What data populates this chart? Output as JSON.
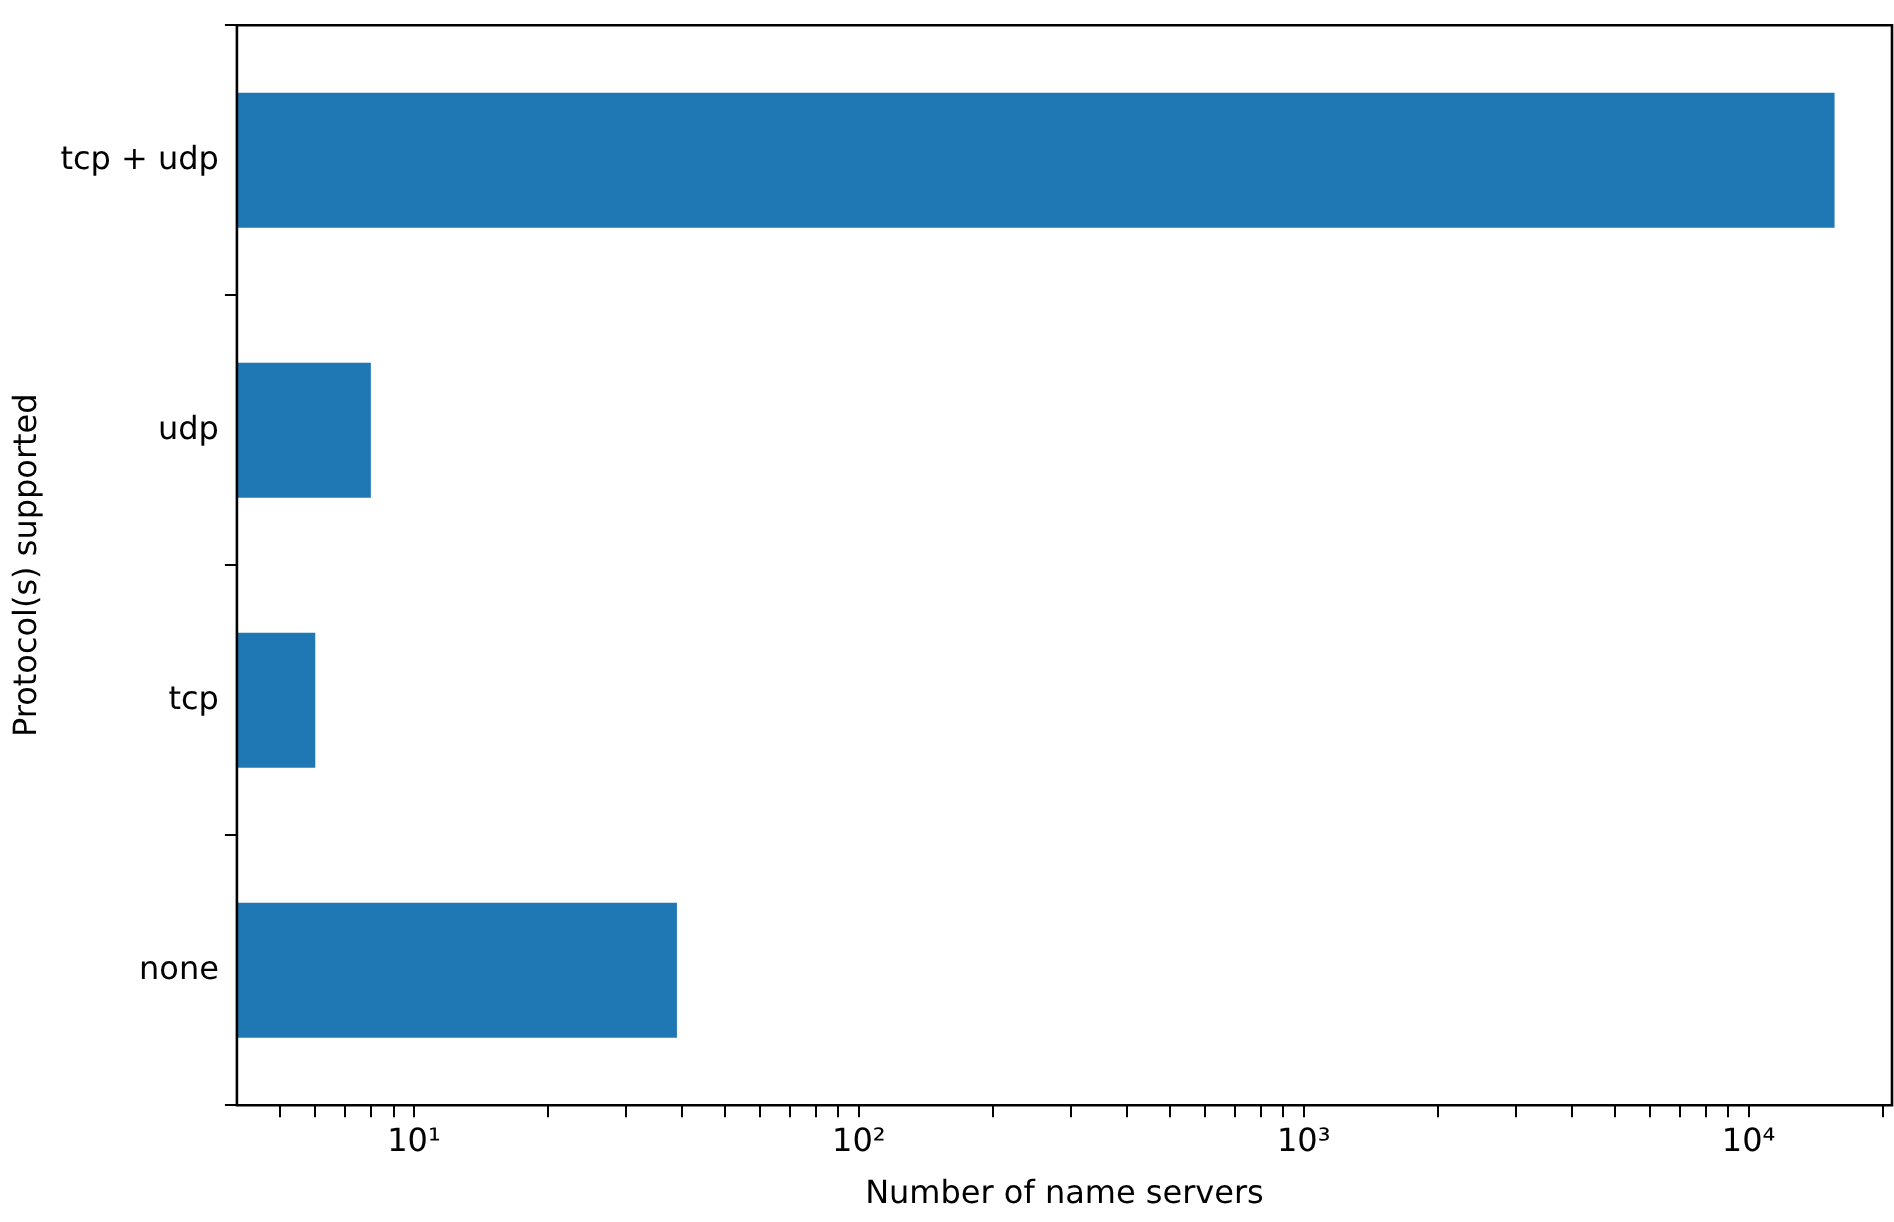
{
  "chart_data": {
    "type": "bar",
    "orientation": "horizontal",
    "log": "x",
    "xlabel": "Number of name servers",
    "ylabel": "Protocol(s) supported",
    "categories": [
      "tcp + udp",
      "udp",
      "tcp",
      "none"
    ],
    "values": [
      15600,
      8,
      6,
      39
    ],
    "color": "#1f77b4",
    "xlim": [
      4,
      21000
    ],
    "xticks": [
      {
        "value": 5,
        "label": null
      },
      {
        "value": 6,
        "label": null
      },
      {
        "value": 7,
        "label": null
      },
      {
        "value": 8,
        "label": null
      },
      {
        "value": 9,
        "label": null
      },
      {
        "value": 10,
        "label": "10¹"
      },
      {
        "value": 20,
        "label": null
      },
      {
        "value": 30,
        "label": null
      },
      {
        "value": 40,
        "label": null
      },
      {
        "value": 50,
        "label": null
      },
      {
        "value": 60,
        "label": null
      },
      {
        "value": 70,
        "label": null
      },
      {
        "value": 80,
        "label": null
      },
      {
        "value": 90,
        "label": null
      },
      {
        "value": 100,
        "label": "10²"
      },
      {
        "value": 200,
        "label": null
      },
      {
        "value": 300,
        "label": null
      },
      {
        "value": 400,
        "label": null
      },
      {
        "value": 500,
        "label": null
      },
      {
        "value": 600,
        "label": null
      },
      {
        "value": 700,
        "label": null
      },
      {
        "value": 800,
        "label": null
      },
      {
        "value": 900,
        "label": null
      },
      {
        "value": 1000,
        "label": "10³"
      },
      {
        "value": 2000,
        "label": null
      },
      {
        "value": 3000,
        "label": null
      },
      {
        "value": 4000,
        "label": null
      },
      {
        "value": 5000,
        "label": null
      },
      {
        "value": 6000,
        "label": null
      },
      {
        "value": 7000,
        "label": null
      },
      {
        "value": 8000,
        "label": null
      },
      {
        "value": 9000,
        "label": null
      },
      {
        "value": 10000,
        "label": "10⁴"
      },
      {
        "value": 20000,
        "label": null
      }
    ]
  }
}
